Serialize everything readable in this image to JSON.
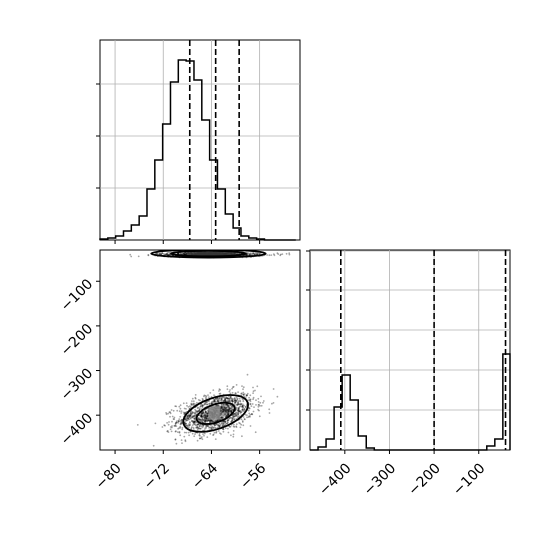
{
  "chart_data": [
    {
      "panel": "marginal-x",
      "type": "histogram",
      "title": "",
      "xlabel": "",
      "ylabel": "",
      "xlim": [
        -82.5,
        -49.3
      ],
      "ylim": [
        0,
        1.0
      ],
      "grid": true,
      "y_ticks_labeled": false,
      "bin_edges": [
        -82.5,
        -81.2,
        -79.9,
        -78.6,
        -77.3,
        -76.0,
        -74.7,
        -73.4,
        -72.1,
        -70.8,
        -69.5,
        -68.2,
        -66.9,
        -65.6,
        -64.3,
        -63.0,
        -61.7,
        -60.4,
        -59.1,
        -57.8,
        -56.5,
        -55.2,
        -53.9,
        -52.6,
        -51.3,
        -50.0
      ],
      "counts": [
        0.005,
        0.01,
        0.02,
        0.045,
        0.075,
        0.12,
        0.255,
        0.4,
        0.58,
        0.79,
        0.9,
        0.895,
        0.8,
        0.6,
        0.4,
        0.255,
        0.13,
        0.06,
        0.02,
        0.01,
        0.005,
        0,
        0,
        0,
        0
      ],
      "quantiles": [
        -67.6,
        -63.3,
        -59.4
      ],
      "line_color": "#000000"
    },
    {
      "panel": "marginal-y",
      "type": "histogram",
      "title": "",
      "xlabel": "",
      "ylabel": "",
      "xlim": [
        -478,
        -30
      ],
      "ylim": [
        0,
        1.0
      ],
      "grid": true,
      "y_ticks_labeled": false,
      "bin_edges": [
        -478,
        -460,
        -442,
        -424,
        -406,
        -388,
        -370,
        -352,
        -334,
        -316,
        -298,
        -280,
        -262,
        -244,
        -226,
        -208,
        -190,
        -172,
        -154,
        -136,
        -118,
        -100,
        -82,
        -64,
        -46,
        -30
      ],
      "counts": [
        0,
        0.015,
        0.055,
        0.215,
        0.375,
        0.25,
        0.07,
        0.01,
        0,
        0,
        0,
        0,
        0,
        0,
        0,
        0,
        0,
        0,
        0,
        0,
        0,
        0,
        0.02,
        0.055,
        0.48
      ],
      "quantiles": [
        -409,
        -200,
        -40
      ],
      "line_color": "#000000"
    },
    {
      "panel": "joint",
      "type": "scatter",
      "title": "",
      "xlabel": "",
      "ylabel": "",
      "xlim": [
        -82.5,
        -49.3
      ],
      "ylim": [
        -478,
        -30
      ],
      "x_ticks": [
        -80,
        -72,
        -64,
        -56
      ],
      "y_ticks": [
        -100,
        -200,
        -300,
        -400
      ],
      "grid": false,
      "clusters": [
        {
          "name": "",
          "center": [
            -63.3,
            -396
          ],
          "spread": [
            3.2,
            21
          ],
          "tilt": -0.42,
          "approx_points": 1500
        },
        {
          "name": "",
          "center": [
            -64.0,
            -40
          ],
          "spread": [
            4.5,
            2.5
          ],
          "tilt": 0,
          "approx_points": 700
        }
      ],
      "density_blocks": [
        {
          "x": [
            -64.5,
            -62.5
          ],
          "y": [
            -410,
            -380
          ],
          "shade": "#8a8a8a"
        },
        {
          "x": [
            -66.5,
            -62.0
          ],
          "y": [
            -44,
            -34
          ],
          "shade": "#1a1a1a"
        },
        {
          "x": [
            -68.0,
            -60.0
          ],
          "y": [
            -44,
            -34
          ],
          "shade": "#3a3a3a"
        }
      ],
      "contours": [
        {
          "level": "inner",
          "x_half": 3.3,
          "y_half": 20,
          "tilt": -0.42,
          "center": [
            -63.3,
            -396
          ]
        },
        {
          "level": "outer",
          "x_half": 5.6,
          "y_half": 35,
          "tilt": -0.42,
          "center": [
            -63.3,
            -396
          ]
        },
        {
          "level": "top-inner",
          "x_half": 6.2,
          "y_half": 6,
          "tilt": 0,
          "center": [
            -64.5,
            -38
          ]
        },
        {
          "level": "top-outer",
          "x_half": 9.5,
          "y_half": 9,
          "tilt": 0,
          "center": [
            -64.5,
            -38
          ]
        }
      ]
    }
  ]
}
